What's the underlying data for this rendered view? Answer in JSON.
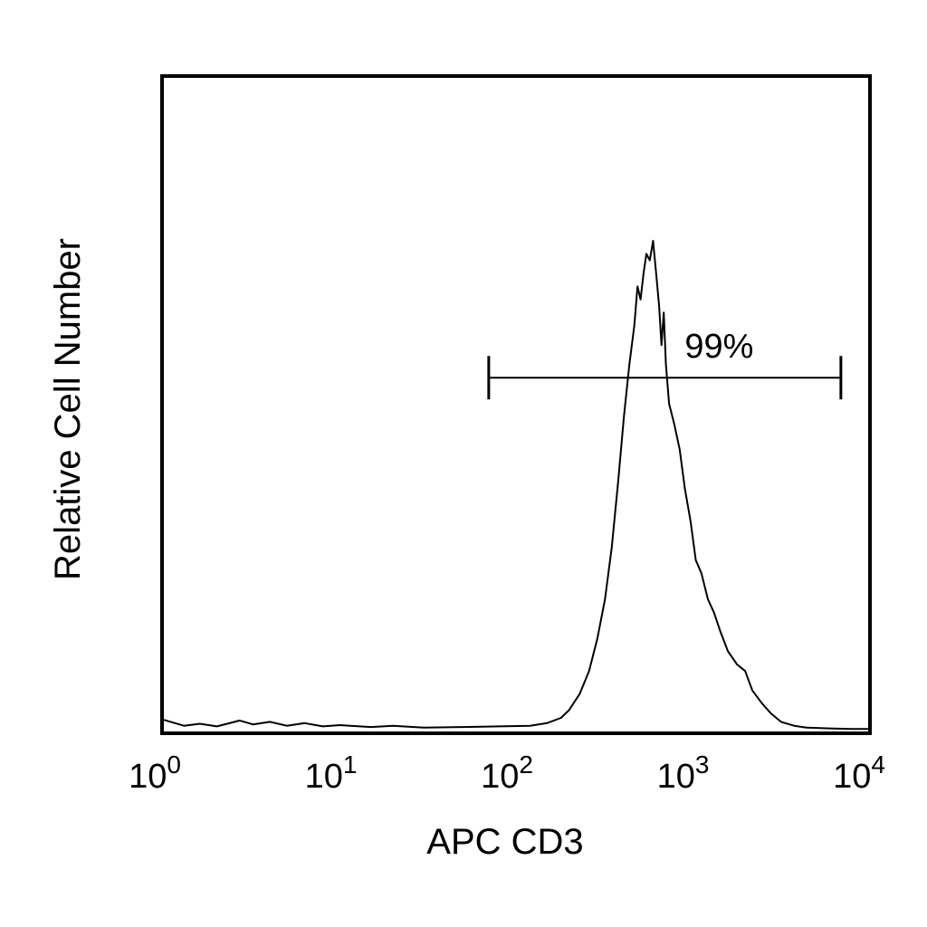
{
  "chart_data": {
    "type": "line",
    "title": "",
    "xlabel": "APC CD3",
    "ylabel": "Relative Cell Number",
    "x_scale": "log",
    "xlim": [
      1,
      10000
    ],
    "ylim": [
      0,
      100
    ],
    "grid": false,
    "x_ticks": [
      {
        "value": 1,
        "base": "10",
        "exp": "0"
      },
      {
        "value": 10,
        "base": "10",
        "exp": "1"
      },
      {
        "value": 100,
        "base": "10",
        "exp": "2"
      },
      {
        "value": 1000,
        "base": "10",
        "exp": "3"
      },
      {
        "value": 10000,
        "base": "10",
        "exp": "4"
      }
    ],
    "series": [
      {
        "points": [
          [
            1,
            1.5
          ],
          [
            1.3,
            0.6
          ],
          [
            1.6,
            0.9
          ],
          [
            2.0,
            0.5
          ],
          [
            2.7,
            1.4
          ],
          [
            3.2,
            0.8
          ],
          [
            4.0,
            1.2
          ],
          [
            5.0,
            0.6
          ],
          [
            6.3,
            1.0
          ],
          [
            8.0,
            0.5
          ],
          [
            10,
            0.7
          ],
          [
            15,
            0.4
          ],
          [
            20,
            0.6
          ],
          [
            30,
            0.3
          ],
          [
            50,
            0.4
          ],
          [
            80,
            0.5
          ],
          [
            120,
            0.6
          ],
          [
            150,
            1.0
          ],
          [
            180,
            1.8
          ],
          [
            200,
            3.0
          ],
          [
            230,
            5.5
          ],
          [
            260,
            9
          ],
          [
            290,
            14
          ],
          [
            320,
            20
          ],
          [
            350,
            28
          ],
          [
            380,
            38
          ],
          [
            410,
            48
          ],
          [
            440,
            56
          ],
          [
            470,
            62
          ],
          [
            490,
            68
          ],
          [
            510,
            66
          ],
          [
            530,
            70
          ],
          [
            550,
            73
          ],
          [
            575,
            72
          ],
          [
            600,
            75
          ],
          [
            625,
            70
          ],
          [
            650,
            65
          ],
          [
            670,
            59
          ],
          [
            690,
            64
          ],
          [
            710,
            56
          ],
          [
            740,
            50
          ],
          [
            790,
            47
          ],
          [
            850,
            43
          ],
          [
            910,
            37
          ],
          [
            980,
            32
          ],
          [
            1050,
            26
          ],
          [
            1130,
            24
          ],
          [
            1230,
            20
          ],
          [
            1330,
            18
          ],
          [
            1450,
            15
          ],
          [
            1600,
            12
          ],
          [
            1800,
            10
          ],
          [
            2000,
            9
          ],
          [
            2200,
            6
          ],
          [
            2500,
            4
          ],
          [
            2800,
            2.5
          ],
          [
            3200,
            1.2
          ],
          [
            3800,
            0.6
          ],
          [
            4500,
            0.3
          ],
          [
            6000,
            0.2
          ],
          [
            8000,
            0.1
          ],
          [
            10000,
            0.1
          ]
        ]
      }
    ],
    "gate": {
      "label": "99%",
      "x_start": 70,
      "x_end": 7000,
      "y": 54
    }
  }
}
